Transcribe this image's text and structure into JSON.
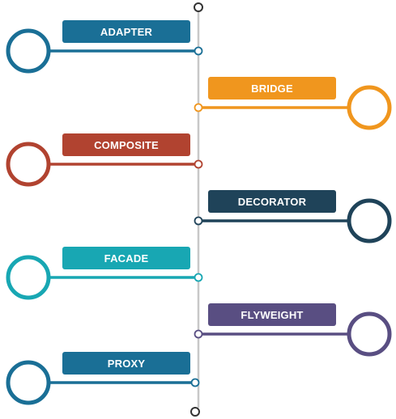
{
  "timeline": {
    "items": [
      {
        "label": "ADAPTER",
        "color": "#1a6f96",
        "side": "left"
      },
      {
        "label": "BRIDGE",
        "color": "#f0961e",
        "side": "right"
      },
      {
        "label": "COMPOSITE",
        "color": "#b14330",
        "side": "left"
      },
      {
        "label": "DECORATOR",
        "color": "#1f4359",
        "side": "right"
      },
      {
        "label": "FACADE",
        "color": "#18a7b3",
        "side": "left"
      },
      {
        "label": "FLYWEIGHT",
        "color": "#594e82",
        "side": "right"
      },
      {
        "label": "PROXY",
        "color": "#1a6f96",
        "side": "left"
      }
    ]
  }
}
